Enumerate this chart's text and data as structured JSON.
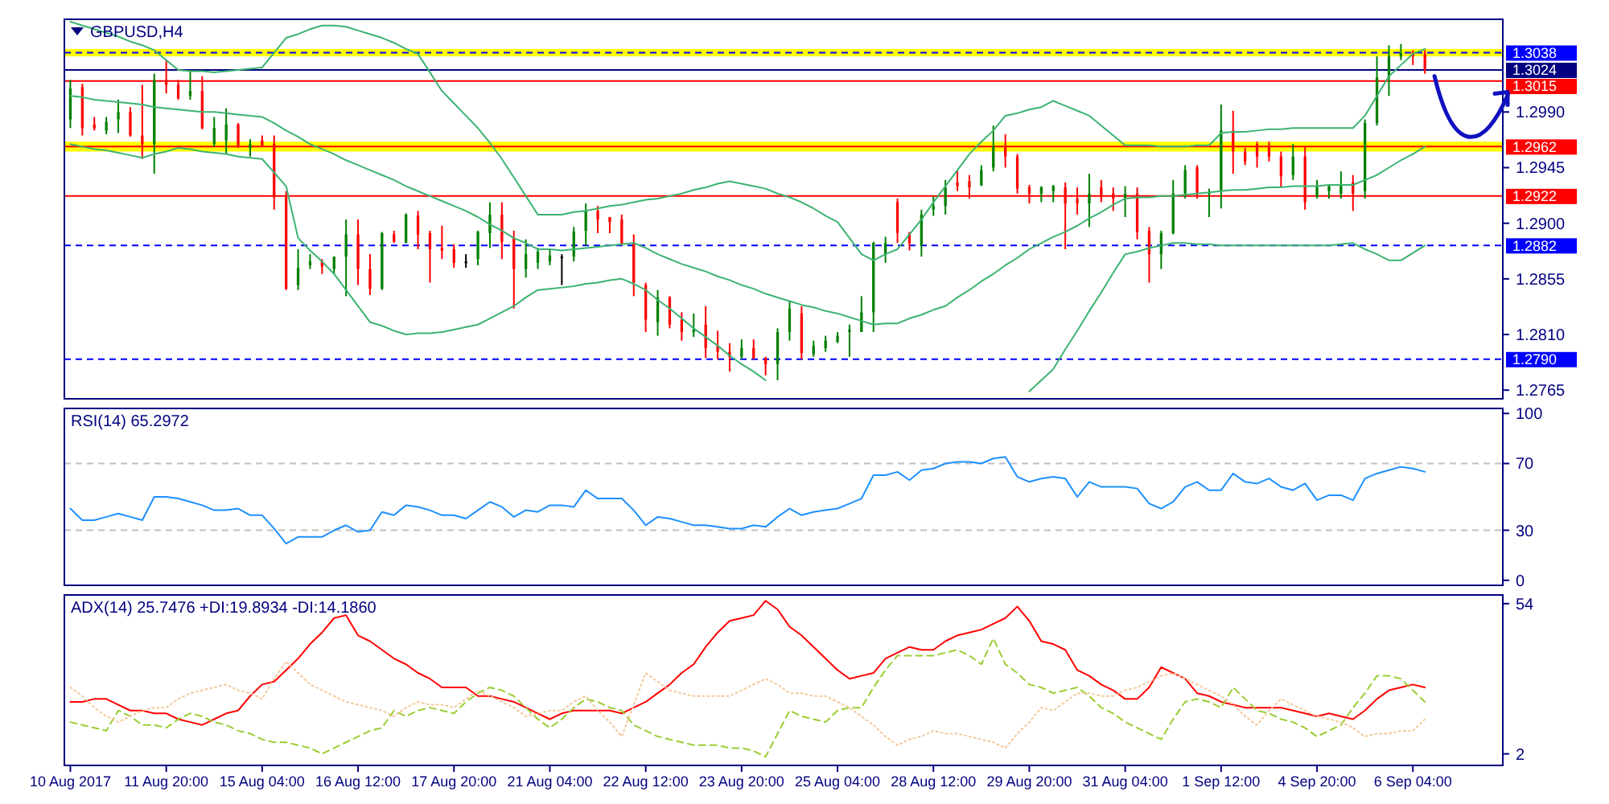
{
  "chart_data": [
    {
      "type": "candlestick",
      "title": "GBPUSD,H4",
      "tick_labels": "y",
      "categories": [
        null,
        null,
        null,
        null,
        null,
        null,
        null,
        null,
        null,
        null,
        null,
        null,
        null,
        null,
        null,
        null,
        null,
        null,
        null,
        null,
        null,
        null,
        null,
        null,
        null,
        null,
        null,
        null,
        null,
        null,
        null,
        null,
        null,
        null,
        null,
        null,
        null,
        null,
        null,
        null,
        null,
        null,
        null,
        null,
        null,
        null,
        null,
        null,
        null,
        null,
        null,
        null,
        null,
        null,
        null,
        null,
        null,
        null,
        null,
        null,
        null,
        null,
        null,
        null,
        null,
        null,
        null,
        null,
        null,
        null,
        null,
        null,
        null,
        null,
        null,
        null,
        null,
        null,
        null,
        null,
        null,
        null,
        null,
        null,
        null,
        null,
        null,
        null,
        null,
        null,
        null,
        null,
        null,
        null,
        null,
        null,
        null,
        null,
        null,
        null,
        null,
        null,
        null,
        null,
        null,
        null,
        null,
        null,
        null,
        null,
        null,
        null,
        null,
        null
      ],
      "ylim": [
        1.2758,
        1.3065
      ],
      "yticks": [
        {
          "value": 1.299,
          "label": "1.2990"
        },
        1.2945,
        {
          "value": 1.29,
          "label": "1.2900"
        },
        1.2855,
        {
          "value": 1.281,
          "label": "1.2810"
        },
        1.2765
      ],
      "ohlc": [
        [
          1.2984,
          1.3016,
          1.2977,
          1.3009
        ],
        [
          1.301,
          1.3013,
          1.2971,
          1.2977
        ],
        [
          1.298,
          1.2986,
          1.2975,
          1.2977
        ],
        [
          1.2975,
          1.2986,
          1.2972,
          1.2982
        ],
        [
          1.2984,
          1.3,
          1.2973,
          1.299
        ],
        [
          1.299,
          1.2994,
          1.297,
          1.2971
        ],
        [
          1.2971,
          1.3012,
          1.2952,
          1.2964
        ],
        [
          1.2964,
          1.3021,
          1.294,
          1.3016
        ],
        [
          1.3016,
          1.3032,
          1.3005,
          1.3012
        ],
        [
          1.3012,
          1.3016,
          1.3,
          1.3001
        ],
        [
          1.3003,
          1.3024,
          1.3,
          1.3007
        ],
        [
          1.3007,
          1.3019,
          1.2976,
          1.2977
        ],
        [
          1.2964,
          1.2986,
          1.2962,
          1.2977
        ],
        [
          1.2967,
          1.2993,
          1.2956,
          1.298
        ],
        [
          1.298,
          1.2981,
          1.2961,
          1.2963
        ],
        [
          1.2961,
          1.2968,
          1.2954,
          1.2964
        ],
        [
          1.2967,
          1.2971,
          1.2962,
          1.2963
        ],
        [
          1.2964,
          1.2971,
          1.2911,
          1.2921
        ],
        [
          1.2921,
          1.2926,
          1.2846,
          1.2847
        ],
        [
          1.285,
          1.2879,
          1.2846,
          1.2864
        ],
        [
          1.2866,
          1.2875,
          1.2863,
          1.2869
        ],
        [
          1.2869,
          1.2871,
          1.2859,
          1.2865
        ],
        [
          1.2863,
          1.2873,
          1.2859,
          1.2873
        ],
        [
          1.2873,
          1.2903,
          1.2841,
          1.2891
        ],
        [
          1.2891,
          1.2903,
          1.285,
          1.2863
        ],
        [
          1.2863,
          1.2875,
          1.2842,
          1.2847
        ],
        [
          1.2847,
          1.2893,
          1.2846,
          1.2892
        ],
        [
          1.2891,
          1.2894,
          1.2884,
          1.2885
        ],
        [
          1.2884,
          1.2908,
          1.2884,
          1.2907
        ],
        [
          1.2906,
          1.291,
          1.2879,
          1.2891
        ],
        [
          1.2892,
          1.2894,
          1.2852,
          1.2879
        ],
        [
          1.288,
          1.2898,
          1.2871,
          1.2878
        ],
        [
          1.2879,
          1.2883,
          1.2864,
          1.2868
        ],
        [
          1.2869,
          1.2875,
          1.2864,
          1.2869
        ],
        [
          1.2871,
          1.2894,
          1.2866,
          1.2893
        ],
        [
          1.2892,
          1.2917,
          1.288,
          1.2907
        ],
        [
          1.2907,
          1.2917,
          1.2871,
          1.2885
        ],
        [
          1.2888,
          1.2894,
          1.2831,
          1.2863
        ],
        [
          1.2863,
          1.2887,
          1.2856,
          1.2875
        ],
        [
          1.2868,
          1.288,
          1.2863,
          1.2877
        ],
        [
          1.2869,
          1.2879,
          1.2866,
          1.2874
        ],
        [
          1.2873,
          1.2875,
          1.285,
          1.2873
        ],
        [
          1.2873,
          1.2897,
          1.2869,
          1.2893
        ],
        [
          1.2894,
          1.2916,
          1.2882,
          1.291
        ],
        [
          1.291,
          1.2914,
          1.2892,
          1.2903
        ],
        [
          1.2905,
          1.2905,
          1.2892,
          1.2901
        ],
        [
          1.2903,
          1.2907,
          1.2882,
          1.2883
        ],
        [
          1.2884,
          1.2891,
          1.2841,
          1.2852
        ],
        [
          1.285,
          1.2852,
          1.2812,
          1.2822
        ],
        [
          1.282,
          1.2846,
          1.2809,
          1.284
        ],
        [
          1.284,
          1.2841,
          1.2815,
          1.2818
        ],
        [
          1.2822,
          1.2828,
          1.2805,
          1.2812
        ],
        [
          1.2812,
          1.2827,
          1.2808,
          1.2814
        ],
        [
          1.2818,
          1.2833,
          1.2791,
          1.2799
        ],
        [
          1.2801,
          1.2813,
          1.279,
          1.2796
        ],
        [
          1.2796,
          1.2803,
          1.278,
          1.2792
        ],
        [
          1.2792,
          1.2806,
          1.279,
          1.2799
        ],
        [
          1.2799,
          1.2806,
          1.279,
          1.2791
        ],
        [
          1.2791,
          1.2792,
          1.2777,
          1.2786
        ],
        [
          1.2786,
          1.2815,
          1.2773,
          1.2812
        ],
        [
          1.2812,
          1.2837,
          1.2805,
          1.2831
        ],
        [
          1.2827,
          1.2833,
          1.279,
          1.2795
        ],
        [
          1.2794,
          1.2805,
          1.2792,
          1.2801
        ],
        [
          1.2799,
          1.2809,
          1.2796,
          1.2805
        ],
        [
          1.2804,
          1.2812,
          1.2803,
          1.2809
        ],
        [
          1.2812,
          1.2818,
          1.2792,
          1.2814
        ],
        [
          1.2812,
          1.2841,
          1.2812,
          1.2828
        ],
        [
          1.2828,
          1.2885,
          1.2812,
          1.2884
        ],
        [
          1.2875,
          1.2889,
          1.2868,
          1.2884
        ],
        [
          1.2917,
          1.292,
          1.2884,
          1.2892
        ],
        [
          1.2892,
          1.2893,
          1.2878,
          1.2884
        ],
        [
          1.2882,
          1.2911,
          1.2873,
          1.2907
        ],
        [
          1.2911,
          1.2922,
          1.2906,
          1.2914
        ],
        [
          1.2914,
          1.2935,
          1.2907,
          1.2929
        ],
        [
          1.2933,
          1.2943,
          1.2926,
          1.293
        ],
        [
          1.2934,
          1.2939,
          1.292,
          1.2929
        ],
        [
          1.2931,
          1.2947,
          1.293,
          1.2943
        ],
        [
          1.2945,
          1.2979,
          1.2942,
          1.2962
        ],
        [
          1.2961,
          1.2972,
          1.2945,
          1.2954
        ],
        [
          1.2954,
          1.2956,
          1.2924,
          1.2928
        ],
        [
          1.2929,
          1.2931,
          1.2916,
          1.2924
        ],
        [
          1.2924,
          1.293,
          1.2917,
          1.2929
        ],
        [
          1.2926,
          1.2931,
          1.2917,
          1.293
        ],
        [
          1.2929,
          1.2933,
          1.2879,
          1.2916
        ],
        [
          1.292,
          1.2929,
          1.2907,
          1.2916
        ],
        [
          1.2916,
          1.294,
          1.2897,
          1.2924
        ],
        [
          1.2929,
          1.2935,
          1.2917,
          1.2921
        ],
        [
          1.2924,
          1.2929,
          1.291,
          1.292
        ],
        [
          1.292,
          1.293,
          1.2905,
          1.2924
        ],
        [
          1.2924,
          1.2929,
          1.2887,
          1.2893
        ],
        [
          1.2894,
          1.2897,
          1.2852,
          1.2875
        ],
        [
          1.2875,
          1.2894,
          1.2863,
          1.2892
        ],
        [
          1.2892,
          1.2935,
          1.2891,
          1.2924
        ],
        [
          1.2924,
          1.2947,
          1.292,
          1.2943
        ],
        [
          1.2945,
          1.2947,
          1.292,
          1.2924
        ],
        [
          1.2924,
          1.2928,
          1.2905,
          1.2925
        ],
        [
          1.2926,
          1.2996,
          1.2912,
          1.2975
        ],
        [
          1.2975,
          1.2991,
          1.294,
          1.2958
        ],
        [
          1.2958,
          1.2961,
          1.2947,
          1.295
        ],
        [
          1.2964,
          1.2966,
          1.2945,
          1.2954
        ],
        [
          1.2963,
          1.2966,
          1.295,
          1.2954
        ],
        [
          1.2954,
          1.2958,
          1.2929,
          1.2938
        ],
        [
          1.2939,
          1.2964,
          1.2935,
          1.2954
        ],
        [
          1.2954,
          1.2962,
          1.2911,
          1.2917
        ],
        [
          1.2922,
          1.2935,
          1.292,
          1.293
        ],
        [
          1.2926,
          1.2931,
          1.292,
          1.293
        ],
        [
          1.2924,
          1.2942,
          1.292,
          1.2931
        ],
        [
          1.2933,
          1.2939,
          1.291,
          1.2924
        ],
        [
          1.2926,
          1.2984,
          1.292,
          1.2981
        ],
        [
          1.2981,
          1.3035,
          1.2979,
          1.3018
        ],
        [
          1.3018,
          1.3044,
          1.3003,
          1.3035
        ],
        [
          1.3035,
          1.3045,
          1.3032,
          1.3038
        ],
        [
          1.3038,
          1.304,
          1.3028,
          1.3035
        ],
        [
          1.3037,
          1.304,
          1.3021,
          1.3024
        ]
      ],
      "series": [
        {
          "type": "line",
          "color": "#3cb371",
          "values": [
            1.3063,
            1.306,
            1.3057,
            1.3054,
            1.3051,
            1.3047,
            1.3044,
            1.304,
            1.3032,
            1.3024,
            1.3023,
            1.3023,
            1.3022,
            1.3023,
            1.3024,
            1.3025,
            1.3026,
            1.3038,
            1.305,
            1.3053,
            1.3057,
            1.306,
            1.306,
            1.3059,
            1.3056,
            1.3053,
            1.305,
            1.3046,
            1.3041,
            1.3037,
            1.3022,
            1.3007,
            1.2997,
            1.2987,
            1.2977,
            1.2965,
            1.2952,
            1.2937,
            1.2922,
            1.2907,
            1.2907,
            1.2907,
            1.2909,
            1.291,
            1.2912,
            1.2914,
            1.2915,
            1.2917,
            1.2919,
            1.292,
            1.2922,
            1.2924,
            1.2927,
            1.2929,
            1.2932,
            1.2934,
            1.2932,
            1.293,
            1.2928,
            1.2924,
            1.2921,
            1.2917,
            1.2912,
            1.2906,
            1.2901,
            1.2888,
            1.2875,
            1.287,
            1.2875,
            1.2879,
            1.2891,
            1.2903,
            1.2917,
            1.293,
            1.2943,
            1.2956,
            1.2966,
            1.2975,
            1.2987,
            1.2989,
            1.2992,
            1.2994,
            1.2999,
            1.2995,
            1.2991,
            1.2987,
            1.2979,
            1.2971,
            1.2963,
            1.2963,
            1.2963,
            1.2962,
            1.2962,
            1.2962,
            1.2963,
            1.2963,
            1.2973,
            1.2974,
            1.2974,
            1.2975,
            1.2976,
            1.2976,
            1.2977,
            1.2977,
            1.2977,
            1.2977,
            1.2977,
            1.2977,
            1.2987,
            1.3003,
            1.3019,
            1.3028,
            1.3037,
            1.3041
          ]
        },
        {
          "type": "line",
          "color": "#3cb371",
          "values": [
            1.3003,
            1.3002,
            1.3,
            1.2999,
            1.2998,
            1.2997,
            1.2996,
            1.2994,
            1.2993,
            1.2992,
            1.2991,
            1.299,
            1.299,
            1.2989,
            1.2988,
            1.2987,
            1.2986,
            1.2981,
            1.2975,
            1.297,
            1.2964,
            1.296,
            1.2956,
            1.2951,
            1.2947,
            1.2943,
            1.2939,
            1.2935,
            1.293,
            1.2926,
            1.2922,
            1.2918,
            1.2914,
            1.291,
            1.2905,
            1.2899,
            1.2894,
            1.2888,
            1.2884,
            1.2879,
            1.2879,
            1.2878,
            1.2879,
            1.288,
            1.2881,
            1.2882,
            1.2883,
            1.2884,
            1.288,
            1.2875,
            1.2871,
            1.2867,
            1.2864,
            1.2861,
            1.2857,
            1.2854,
            1.285,
            1.2847,
            1.2843,
            1.284,
            1.2837,
            1.2834,
            1.2832,
            1.2829,
            1.2827,
            1.2824,
            1.2821,
            1.2818,
            1.2819,
            1.2819,
            1.2823,
            1.2826,
            1.283,
            1.2833,
            1.284,
            1.2846,
            1.2853,
            1.2859,
            1.2866,
            1.2872,
            1.2879,
            1.2884,
            1.2889,
            1.2893,
            1.2898,
            1.2904,
            1.2909,
            1.2915,
            1.292,
            1.2921,
            1.2921,
            1.2922,
            1.2922,
            1.2923,
            1.2924,
            1.2925,
            1.2926,
            1.2927,
            1.2927,
            1.2928,
            1.2929,
            1.2929,
            1.293,
            1.293,
            1.293,
            1.2931,
            1.2931,
            1.2931,
            1.2935,
            1.2939,
            1.2945,
            1.2951,
            1.2956,
            1.2962
          ]
        },
        {
          "type": "line",
          "color": "#3cb371",
          "values": [
            1.2964,
            1.2962,
            1.296,
            1.2959,
            1.2957,
            1.2955,
            1.2953,
            1.2956,
            1.2958,
            1.2961,
            1.296,
            1.2958,
            1.2957,
            1.2956,
            1.2954,
            1.2953,
            1.2952,
            1.2941,
            1.293,
            1.2888,
            1.2878,
            1.2869,
            1.2859,
            1.2846,
            1.2833,
            1.282,
            1.2817,
            1.2813,
            1.281,
            1.2811,
            1.2811,
            1.2812,
            1.2814,
            1.2816,
            1.2818,
            1.2823,
            1.2828,
            1.2833,
            1.284,
            1.2846,
            1.2847,
            1.2848,
            1.2849,
            1.2851,
            1.2852,
            1.2854,
            1.2855,
            1.2851,
            1.2846,
            1.2838,
            1.2831,
            1.2823,
            1.2815,
            1.2808,
            1.2801,
            1.2793,
            1.2786,
            1.278,
            1.2773,
            null,
            null,
            null,
            null,
            null,
            null,
            null,
            null,
            null,
            null,
            null,
            null,
            null,
            null,
            null,
            null,
            null,
            null,
            null,
            null,
            null,
            1.2764,
            1.2773,
            1.2782,
            1.2798,
            1.2813,
            1.2829,
            1.2844,
            1.286,
            1.2875,
            1.2877,
            1.288,
            1.2882,
            1.2884,
            1.2884,
            1.2883,
            1.2883,
            1.2882,
            1.2882,
            1.2882,
            1.2882,
            1.2882,
            1.2882,
            1.2882,
            1.2882,
            1.2882,
            1.2882,
            1.2883,
            1.2884,
            1.2879,
            1.2875,
            1.287,
            1.287,
            1.2876,
            1.2882
          ]
        }
      ],
      "bands": [
        {
          "axis": "y",
          "from": 1.3035,
          "to": 1.3041,
          "color": "#ffff00"
        },
        {
          "axis": "y",
          "from": 1.2958,
          "to": 1.2966,
          "color": "#ffff00"
        }
      ],
      "ref_lines": [
        {
          "axis": "y",
          "value": 1.3038,
          "label": "1.3038",
          "color": "#0000ff",
          "line_style": "dashed"
        },
        {
          "axis": "y",
          "value": 1.3024,
          "label": "1.3024",
          "color": "#000080",
          "line_style": "solid"
        },
        {
          "axis": "y",
          "value": 1.3015,
          "label": "1.3015",
          "color": "#ff0000",
          "line_style": "solid"
        },
        {
          "axis": "y",
          "value": 1.2962,
          "label": "1.2962",
          "color": "#ff0000",
          "line_style": "solid"
        },
        {
          "axis": "y",
          "value": 1.2922,
          "label": "1.2922",
          "color": "#ff0000",
          "line_style": "solid"
        },
        {
          "axis": "y",
          "value": 1.2882,
          "label": "1.2882",
          "color": "#0000ff",
          "line_style": "dashed"
        },
        {
          "axis": "y",
          "value": 1.279,
          "label": "1.2790",
          "color": "#0000ff",
          "line_style": "dashed"
        }
      ]
    },
    {
      "type": "line",
      "title": "RSI(14) 65.2972",
      "tick_labels": "y",
      "categories": [
        null,
        null,
        null,
        null,
        null,
        null,
        null,
        null,
        null,
        null,
        null,
        null,
        null,
        null,
        null,
        null,
        null,
        null,
        null,
        null,
        null,
        null,
        null,
        null,
        null,
        null,
        null,
        null,
        null,
        null,
        null,
        null,
        null,
        null,
        null,
        null,
        null,
        null,
        null,
        null,
        null,
        null,
        null,
        null,
        null,
        null,
        null,
        null,
        null,
        null,
        null,
        null,
        null,
        null,
        null,
        null,
        null,
        null,
        null,
        null,
        null,
        null,
        null,
        null,
        null,
        null,
        null,
        null,
        null,
        null,
        null,
        null,
        null,
        null,
        null,
        null,
        null,
        null,
        null,
        null,
        null,
        null,
        null,
        null,
        null,
        null,
        null,
        null,
        null,
        null,
        null,
        null,
        null,
        null,
        null,
        null,
        null,
        null,
        null,
        null,
        null,
        null,
        null,
        null,
        null,
        null,
        null,
        null,
        null,
        null,
        null,
        null,
        null,
        null
      ],
      "ylim": [
        -3,
        103
      ],
      "yticks": [
        100,
        70,
        30,
        0
      ],
      "series": [
        {
          "color": "#1e90ff",
          "values": [
            43,
            36,
            36,
            38,
            40,
            38,
            36,
            50,
            50,
            49,
            47,
            45,
            42,
            42,
            43,
            39,
            39,
            31,
            22,
            26,
            26,
            26,
            30,
            33,
            29,
            30,
            41,
            39,
            45,
            44,
            42,
            39,
            39,
            37,
            42,
            47,
            44,
            38,
            42,
            41,
            45,
            45,
            44,
            54,
            49,
            49,
            49,
            42,
            33,
            38,
            37,
            35,
            33,
            33,
            32,
            31,
            31,
            33,
            32,
            38,
            43,
            39,
            41,
            42,
            43,
            46,
            49,
            63,
            63,
            65,
            60,
            66,
            67,
            70,
            71,
            71,
            70,
            73,
            74,
            62,
            59,
            61,
            62,
            61,
            50,
            59,
            56,
            56,
            56,
            55,
            46,
            43,
            47,
            56,
            59,
            54,
            54,
            64,
            59,
            58,
            61,
            56,
            54,
            58,
            48,
            51,
            51,
            48,
            61,
            64,
            66,
            68,
            67,
            65
          ]
        }
      ],
      "ref_lines": [
        {
          "axis": "y",
          "value": 70,
          "color": "#c0c0c0",
          "line_style": "dashed"
        },
        {
          "axis": "y",
          "value": 30,
          "color": "#c0c0c0",
          "line_style": "dashed"
        }
      ]
    },
    {
      "type": "line",
      "title": "ADX(14) 25.7476 +DI:19.8934 -DI:14.1860",
      "categories": [
        "10 Aug 2017",
        null,
        null,
        null,
        null,
        null,
        null,
        null,
        "11 Aug 20:00",
        null,
        null,
        null,
        null,
        null,
        null,
        null,
        "15 Aug 04:00",
        null,
        null,
        null,
        null,
        null,
        null,
        null,
        "16 Aug 12:00",
        null,
        null,
        null,
        null,
        null,
        null,
        null,
        "17 Aug 20:00",
        null,
        null,
        null,
        null,
        null,
        null,
        null,
        "21 Aug 04:00",
        null,
        null,
        null,
        null,
        null,
        null,
        null,
        "22 Aug 12:00",
        null,
        null,
        null,
        null,
        null,
        null,
        null,
        "23 Aug 20:00",
        null,
        null,
        null,
        null,
        null,
        null,
        null,
        "25 Aug 04:00",
        null,
        null,
        null,
        null,
        null,
        null,
        null,
        "28 Aug 12:00",
        null,
        null,
        null,
        null,
        null,
        null,
        null,
        "29 Aug 20:00",
        null,
        null,
        null,
        null,
        null,
        null,
        null,
        "31 Aug 04:00",
        null,
        null,
        null,
        null,
        null,
        null,
        null,
        "1 Sep 12:00",
        null,
        null,
        null,
        null,
        null,
        null,
        null,
        "4 Sep 20:00",
        null,
        null,
        null,
        null,
        null,
        null,
        null,
        "6 Sep 04:00",
        null
      ],
      "ylim": [
        -2,
        57
      ],
      "yticks": [
        54,
        2
      ],
      "series": [
        {
          "color": "#ff0000",
          "line_style": "solid",
          "values": [
            20,
            20,
            21,
            21,
            19,
            17,
            17,
            16,
            16,
            14,
            13,
            12,
            14,
            16,
            17,
            22,
            26,
            27,
            31,
            35,
            40,
            44,
            49,
            50,
            43,
            41,
            38,
            35,
            33,
            30,
            28,
            25,
            25,
            25,
            22,
            22,
            21,
            20,
            18,
            16,
            14,
            16,
            17,
            17,
            17,
            17,
            16,
            18,
            20,
            23,
            26,
            30,
            33,
            39,
            44,
            48,
            49,
            50,
            55,
            52,
            46,
            43,
            39,
            35,
            31,
            28,
            29,
            30,
            35,
            37,
            39,
            38,
            38,
            41,
            43,
            44,
            45,
            47,
            49,
            53,
            48,
            41,
            40,
            38,
            31,
            29,
            26,
            24,
            21,
            21,
            25,
            32,
            30,
            28,
            23,
            22,
            20,
            19,
            18,
            18,
            18,
            18,
            17,
            16,
            15,
            16,
            15,
            14,
            17,
            21,
            24,
            25,
            26,
            25
          ]
        },
        {
          "color": "#9acd32",
          "line_style": "dashed",
          "values": [
            13,
            12,
            11,
            10,
            17,
            15,
            12,
            12,
            11,
            14,
            16,
            15,
            13,
            12,
            10,
            9,
            7,
            6,
            6,
            5,
            4,
            2,
            4,
            6,
            8,
            10,
            11,
            17,
            15,
            17,
            18,
            17,
            16,
            20,
            23,
            25,
            24,
            22,
            18,
            14,
            11,
            14,
            18,
            21,
            20,
            18,
            17,
            12,
            10,
            8,
            7,
            6,
            5,
            5,
            5,
            4,
            4,
            3,
            1,
            9,
            17,
            15,
            14,
            13,
            17,
            18,
            18,
            25,
            31,
            36,
            36,
            36,
            36,
            37,
            38,
            36,
            33,
            42,
            33,
            30,
            26,
            25,
            23,
            24,
            25,
            22,
            18,
            16,
            13,
            11,
            9,
            7,
            14,
            20,
            21,
            20,
            18,
            25,
            21,
            17,
            16,
            14,
            13,
            11,
            8,
            10,
            12,
            18,
            23,
            29,
            29,
            28,
            24,
            20
          ]
        },
        {
          "color": "#f4c89a",
          "line_style": "dotted",
          "values": [
            25,
            22,
            18,
            15,
            13,
            15,
            17,
            18,
            18,
            21,
            23,
            24,
            25,
            26,
            24,
            23,
            21,
            28,
            34,
            30,
            26,
            24,
            22,
            20,
            19,
            18,
            17,
            15,
            18,
            20,
            19,
            19,
            18,
            21,
            24,
            22,
            20,
            18,
            15,
            16,
            17,
            17,
            20,
            22,
            17,
            13,
            8,
            19,
            30,
            27,
            24,
            23,
            22,
            22,
            22,
            22,
            24,
            26,
            28,
            26,
            23,
            23,
            22,
            22,
            20,
            18,
            15,
            12,
            8,
            5,
            7,
            8,
            10,
            9,
            9,
            8,
            7,
            6,
            4,
            9,
            13,
            18,
            17,
            20,
            23,
            23,
            22,
            22,
            24,
            25,
            27,
            29,
            30,
            28,
            26,
            24,
            22,
            19,
            15,
            12,
            17,
            21,
            19,
            17,
            15,
            14,
            13,
            11,
            8,
            9,
            9,
            10,
            10,
            14
          ]
        }
      ]
    }
  ]
}
